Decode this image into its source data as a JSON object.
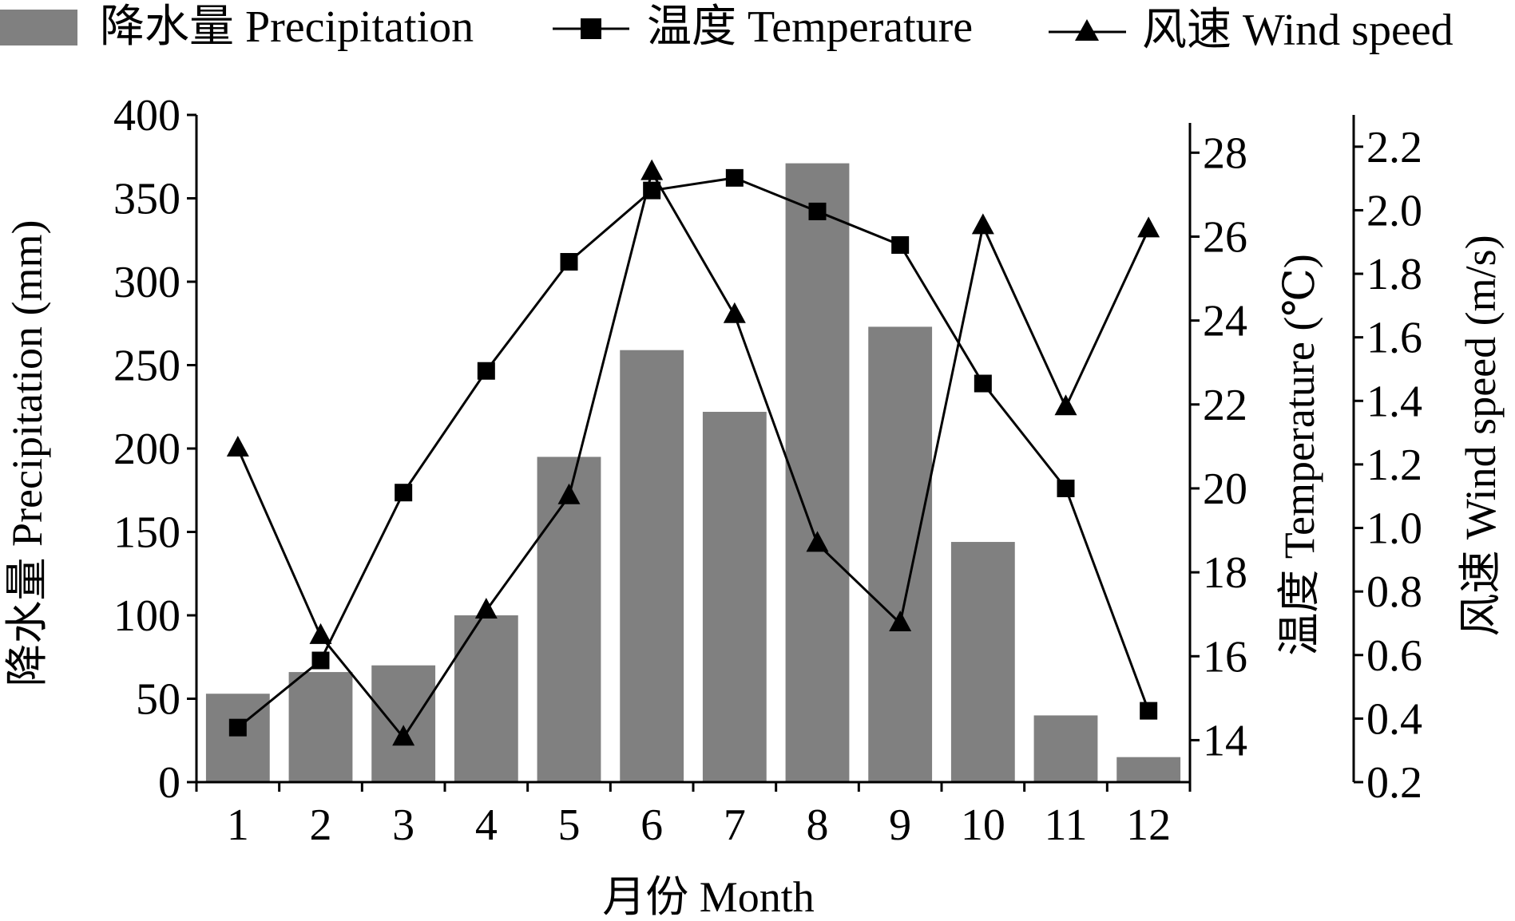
{
  "chart_data": {
    "type": "bar",
    "categories": [
      "1",
      "2",
      "3",
      "4",
      "5",
      "6",
      "7",
      "8",
      "9",
      "10",
      "11",
      "12"
    ],
    "xlabel": "月份 Month",
    "series": [
      {
        "name": "降水量 Precipitation",
        "type": "bar",
        "axis": "left",
        "color": "#808080",
        "values": [
          53,
          66,
          70,
          100,
          195,
          259,
          222,
          371,
          273,
          144,
          40,
          15
        ]
      },
      {
        "name": "温度 Temperature",
        "type": "line",
        "marker": "square",
        "axis": "right",
        "color": "#000000",
        "values": [
          14.3,
          15.9,
          19.9,
          22.8,
          25.4,
          27.1,
          27.4,
          26.6,
          25.8,
          22.5,
          20.0,
          14.7
        ]
      },
      {
        "name": "风速 Wind speed",
        "type": "line",
        "marker": "triangle",
        "axis": "right2",
        "color": "#000000",
        "values": [
          1.25,
          0.66,
          0.34,
          0.74,
          1.1,
          2.12,
          1.67,
          0.95,
          0.7,
          1.95,
          1.38,
          1.94
        ]
      }
    ],
    "axes": {
      "left": {
        "label": "降水量 Precipitation (mm)",
        "ylim": [
          0,
          400
        ],
        "ticks": [
          "0",
          "50",
          "100",
          "150",
          "200",
          "250",
          "300",
          "350",
          "400"
        ]
      },
      "right": {
        "label": "温度 Temperature (℃)",
        "ylim": [
          13,
          28.9
        ],
        "ticks": [
          "14",
          "16",
          "18",
          "20",
          "22",
          "24",
          "26",
          "28"
        ]
      },
      "right2": {
        "label": "风速 Wind speed (m/s)",
        "ylim": [
          0.2,
          2.3
        ],
        "ticks": [
          "0.2",
          "0.4",
          "0.6",
          "0.8",
          "1.0",
          "1.2",
          "1.4",
          "1.6",
          "1.8",
          "2.0",
          "2.2"
        ]
      }
    },
    "grid": false,
    "legend_position": "top"
  }
}
